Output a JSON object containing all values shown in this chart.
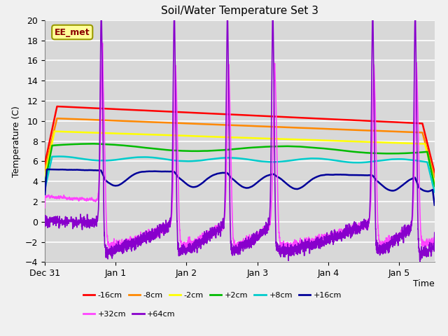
{
  "title": "Soil/Water Temperature Set 3",
  "xlabel": "Time",
  "ylabel": "Temperature (C)",
  "ylim": [
    -4,
    20
  ],
  "yticks": [
    -4,
    -2,
    0,
    2,
    4,
    6,
    8,
    10,
    12,
    14,
    16,
    18,
    20
  ],
  "xlim_days": [
    0,
    5.5
  ],
  "xtick_positions": [
    0,
    1,
    2,
    3,
    4,
    5
  ],
  "xtick_labels": [
    "Dec 31",
    "Jan 1",
    "Jan 2",
    "Jan 3",
    "Jan 4",
    "Jan 5"
  ],
  "annotation_text": "EE_met",
  "annotation_bg": "#ffff99",
  "annotation_border": "#999900",
  "background_color": "#d8d8d8",
  "plot_bg": "#d8d8d8",
  "fig_bg": "#f0f0f0",
  "grid_color": "#ffffff",
  "series": [
    {
      "label": "-16cm",
      "color": "#ff0000"
    },
    {
      "label": "-8cm",
      "color": "#ff8800"
    },
    {
      "label": "-2cm",
      "color": "#ffff00"
    },
    {
      "label": "+2cm",
      "color": "#00bb00"
    },
    {
      "label": "+8cm",
      "color": "#00cccc"
    },
    {
      "label": "+16cm",
      "color": "#000099"
    },
    {
      "label": "+32cm",
      "color": "#ff44ff"
    },
    {
      "label": "+64cm",
      "color": "#8800cc"
    }
  ],
  "legend_ncol_row1": 6,
  "legend_ncol_row2": 2
}
